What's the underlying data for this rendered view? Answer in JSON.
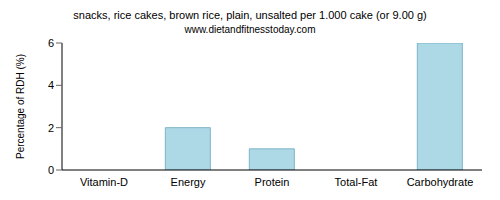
{
  "chart_data": {
    "type": "bar",
    "title": "snacks, rice cakes, brown rice, plain, unsalted per 1.000 cake (or 9.00 g)",
    "subtitle": "www.dietandfitnesstoday.com",
    "ylabel": "Percentage of RDH (%)",
    "categories": [
      "Vitamin-D",
      "Energy",
      "Protein",
      "Total-Fat",
      "Carbohydrate"
    ],
    "values": [
      0,
      2,
      1,
      0,
      6
    ],
    "color": "#add8e6",
    "ylim": [
      0,
      6
    ],
    "yticks": [
      0,
      2,
      4,
      6
    ],
    "grid": false
  }
}
